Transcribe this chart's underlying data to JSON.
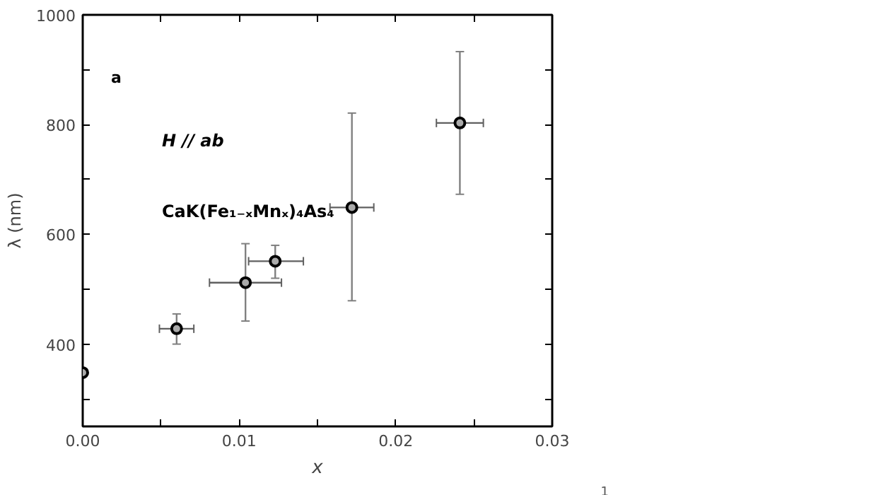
{
  "chart_data": {
    "type": "scatter",
    "xlabel": "x",
    "ylabel": "λ (nm)",
    "annotations": [
      "a",
      "H // ab",
      "CaK(Fe₁₋ₓMnₓ)₄As₄",
      "1"
    ],
    "x": [
      0,
      0.006,
      0.0104,
      0.0123,
      0.0172,
      0.0241
    ],
    "series": [
      {
        "color": "#000000",
        "values": [
          348,
          428,
          512,
          551,
          649,
          803
        ],
        "errors": [
          null,
          [
            400,
            455
          ],
          [
            442,
            583
          ],
          [
            520,
            580
          ],
          [
            479,
            821
          ],
          [
            673,
            933
          ]
        ],
        "xerrors": [
          null,
          [
            0.0049,
            0.0071
          ],
          [
            0.0081,
            0.0127
          ],
          [
            0.0106,
            0.0141
          ],
          [
            0.0158,
            0.0186
          ],
          [
            0.0226,
            0.0256
          ]
        ]
      }
    ],
    "marker": "circle",
    "grid": false,
    "xlim": [
      0,
      0.03
    ],
    "ylim": [
      250,
      1000
    ],
    "xticks": [
      {
        "value": 0,
        "label": "0.00"
      },
      {
        "value": 0.005,
        "label": null
      },
      0.01,
      {
        "value": 0.015,
        "label": null
      },
      0.02,
      {
        "value": 0.025,
        "label": null
      },
      0.03
    ],
    "yticks": [
      {
        "value": 300,
        "label": null
      },
      400,
      {
        "value": 500,
        "label": null
      },
      600,
      {
        "value": 700,
        "label": null
      },
      800,
      {
        "value": 900,
        "label": null
      },
      1000
    ]
  }
}
